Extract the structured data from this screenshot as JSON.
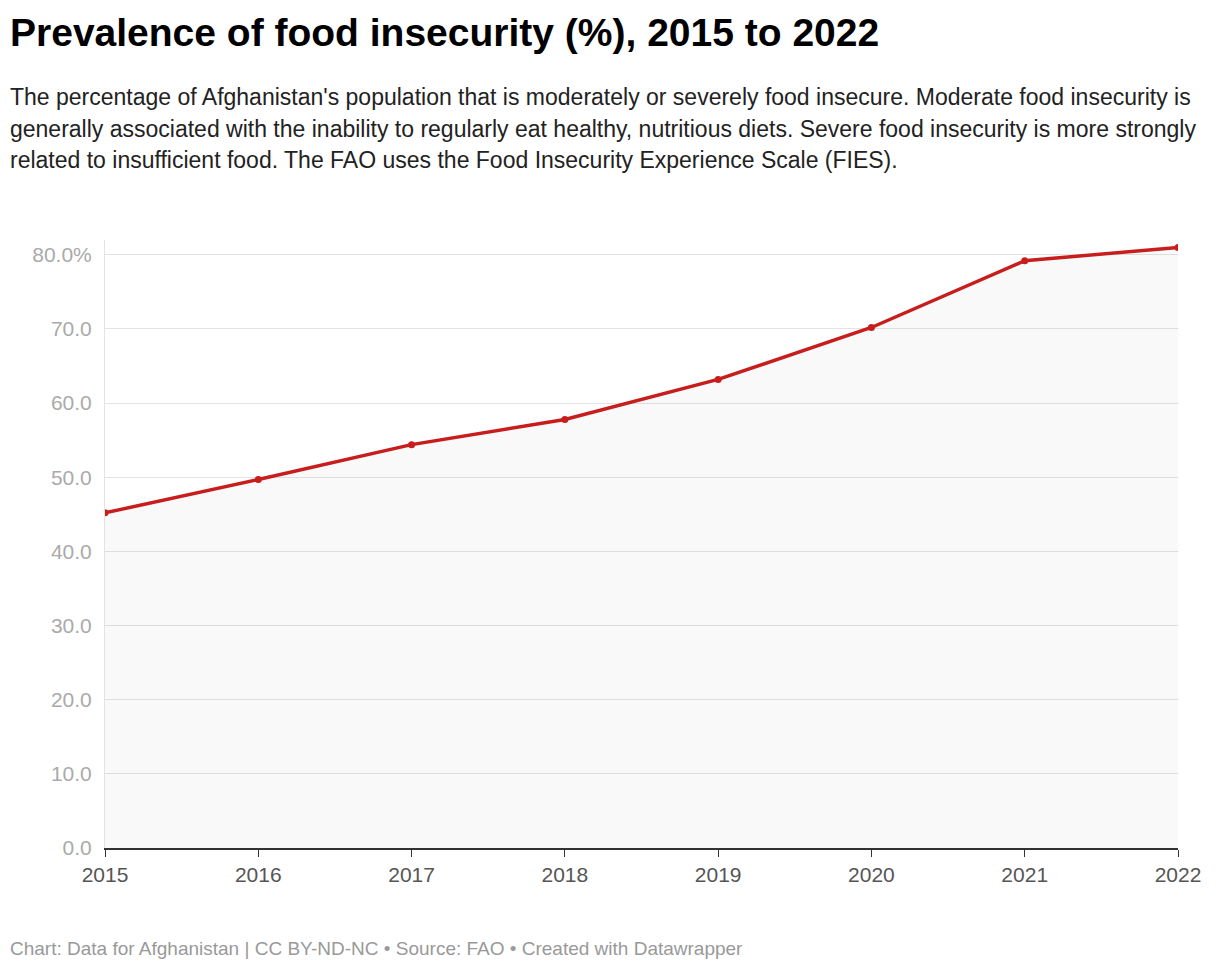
{
  "chart_data": {
    "type": "line",
    "title": "Prevalence of food insecurity (%), 2015 to 2022",
    "subtitle": "The percentage of Afghanistan's population that is moderately or severely food insecure. Moderate food insecurity is generally associated with the inability to regularly eat healthy, nutritious diets. Severe food insecurity is more strongly related to insufficient food. The FAO uses the Food Insecurity Experience Scale (FIES).",
    "source_note": "Chart: Data for Afghanistan | CC BY-ND-NC • Source: FAO • Created with Datawrapper",
    "x": [
      2015,
      2016,
      2017,
      2018,
      2019,
      2020,
      2021,
      2022
    ],
    "values": [
      45.2,
      49.7,
      54.4,
      57.8,
      63.2,
      70.2,
      79.2,
      81.0
    ],
    "color": "#c71e1d",
    "marker": "circle",
    "xlim": [
      2015,
      2022
    ],
    "xticks": [
      2015,
      2016,
      2017,
      2018,
      2019,
      2020,
      2021,
      2022
    ],
    "ylim": [
      0,
      82
    ],
    "yticks": [
      {
        "value": 0,
        "label": "0.0"
      },
      {
        "value": 10,
        "label": "10.0"
      },
      {
        "value": 20,
        "label": "20.0"
      },
      {
        "value": 30,
        "label": "30.0"
      },
      {
        "value": 40,
        "label": "40.0"
      },
      {
        "value": 50,
        "label": "50.0"
      },
      {
        "value": 60,
        "label": "60.0"
      },
      {
        "value": 70,
        "label": "70.0"
      },
      {
        "value": 80,
        "label": "80.0%"
      }
    ],
    "grid": true
  }
}
